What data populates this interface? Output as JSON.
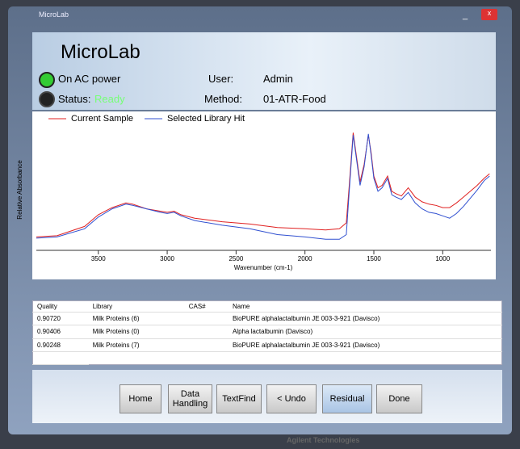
{
  "window": {
    "title": "MicroLab"
  },
  "header": {
    "app_name": "MicroLab",
    "power_status": "On AC power",
    "status_label": "Status:",
    "status_value": "Ready",
    "user_label": "User:",
    "user": "Admin",
    "method_label": "Method:",
    "method": "01-ATR-Food"
  },
  "chart_data": {
    "type": "line",
    "x_label": "Wavenumber (cm-1)",
    "y_label": "Relative Absorbance",
    "x": [
      3950,
      3800,
      3600,
      3500,
      3400,
      3300,
      3250,
      3150,
      3050,
      3000,
      2950,
      2900,
      2800,
      2600,
      2400,
      2200,
      2000,
      1850,
      1750,
      1700,
      1680,
      1650,
      1630,
      1600,
      1570,
      1540,
      1520,
      1500,
      1470,
      1440,
      1400,
      1370,
      1340,
      1300,
      1250,
      1200,
      1150,
      1100,
      1050,
      1000,
      950,
      900,
      850,
      800,
      750,
      700,
      660
    ],
    "series": [
      {
        "name": "Current Sample",
        "color": "#e02020",
        "values": [
          0.08,
          0.09,
          0.17,
          0.27,
          0.33,
          0.37,
          0.36,
          0.32,
          0.3,
          0.29,
          0.3,
          0.27,
          0.24,
          0.21,
          0.19,
          0.16,
          0.15,
          0.14,
          0.15,
          0.2,
          0.5,
          0.97,
          0.8,
          0.55,
          0.7,
          0.95,
          0.8,
          0.6,
          0.5,
          0.52,
          0.6,
          0.47,
          0.45,
          0.43,
          0.5,
          0.42,
          0.38,
          0.36,
          0.35,
          0.33,
          0.33,
          0.37,
          0.42,
          0.47,
          0.52,
          0.58,
          0.62
        ]
      },
      {
        "name": "Selected Library Hit",
        "color": "#3050d0",
        "values": [
          0.07,
          0.08,
          0.15,
          0.25,
          0.32,
          0.36,
          0.35,
          0.32,
          0.29,
          0.28,
          0.29,
          0.26,
          0.22,
          0.18,
          0.15,
          0.1,
          0.08,
          0.06,
          0.06,
          0.1,
          0.45,
          0.95,
          0.78,
          0.52,
          0.68,
          0.96,
          0.78,
          0.58,
          0.47,
          0.5,
          0.58,
          0.44,
          0.42,
          0.4,
          0.46,
          0.37,
          0.32,
          0.29,
          0.28,
          0.26,
          0.24,
          0.28,
          0.34,
          0.41,
          0.48,
          0.56,
          0.6
        ]
      }
    ],
    "xlim": [
      3950,
      650
    ],
    "xticks": [
      3500,
      3000,
      2500,
      2000,
      1500,
      1000
    ],
    "ylim": [
      0,
      1
    ]
  },
  "table": {
    "columns": [
      "Quality",
      "Library",
      "CAS#",
      "Name"
    ],
    "rows": [
      [
        "0.90720",
        "Milk Proteins (6)",
        "",
        "BioPURE alphalactalbumin JE 003-3-921 (Davisco)"
      ],
      [
        "0.90406",
        "Milk Proteins (0)",
        "",
        "Alpha lactalbumin (Davisco)"
      ],
      [
        "0.90248",
        "Milk Proteins (7)",
        "",
        "BioPURE alphalactalbumin JE 003-3-921 (Davisco)"
      ]
    ]
  },
  "buttons": [
    "Home",
    "Data Handling",
    "TextFind",
    "< Undo",
    "Residual",
    "Done"
  ],
  "footer": "Agilent Technologies"
}
